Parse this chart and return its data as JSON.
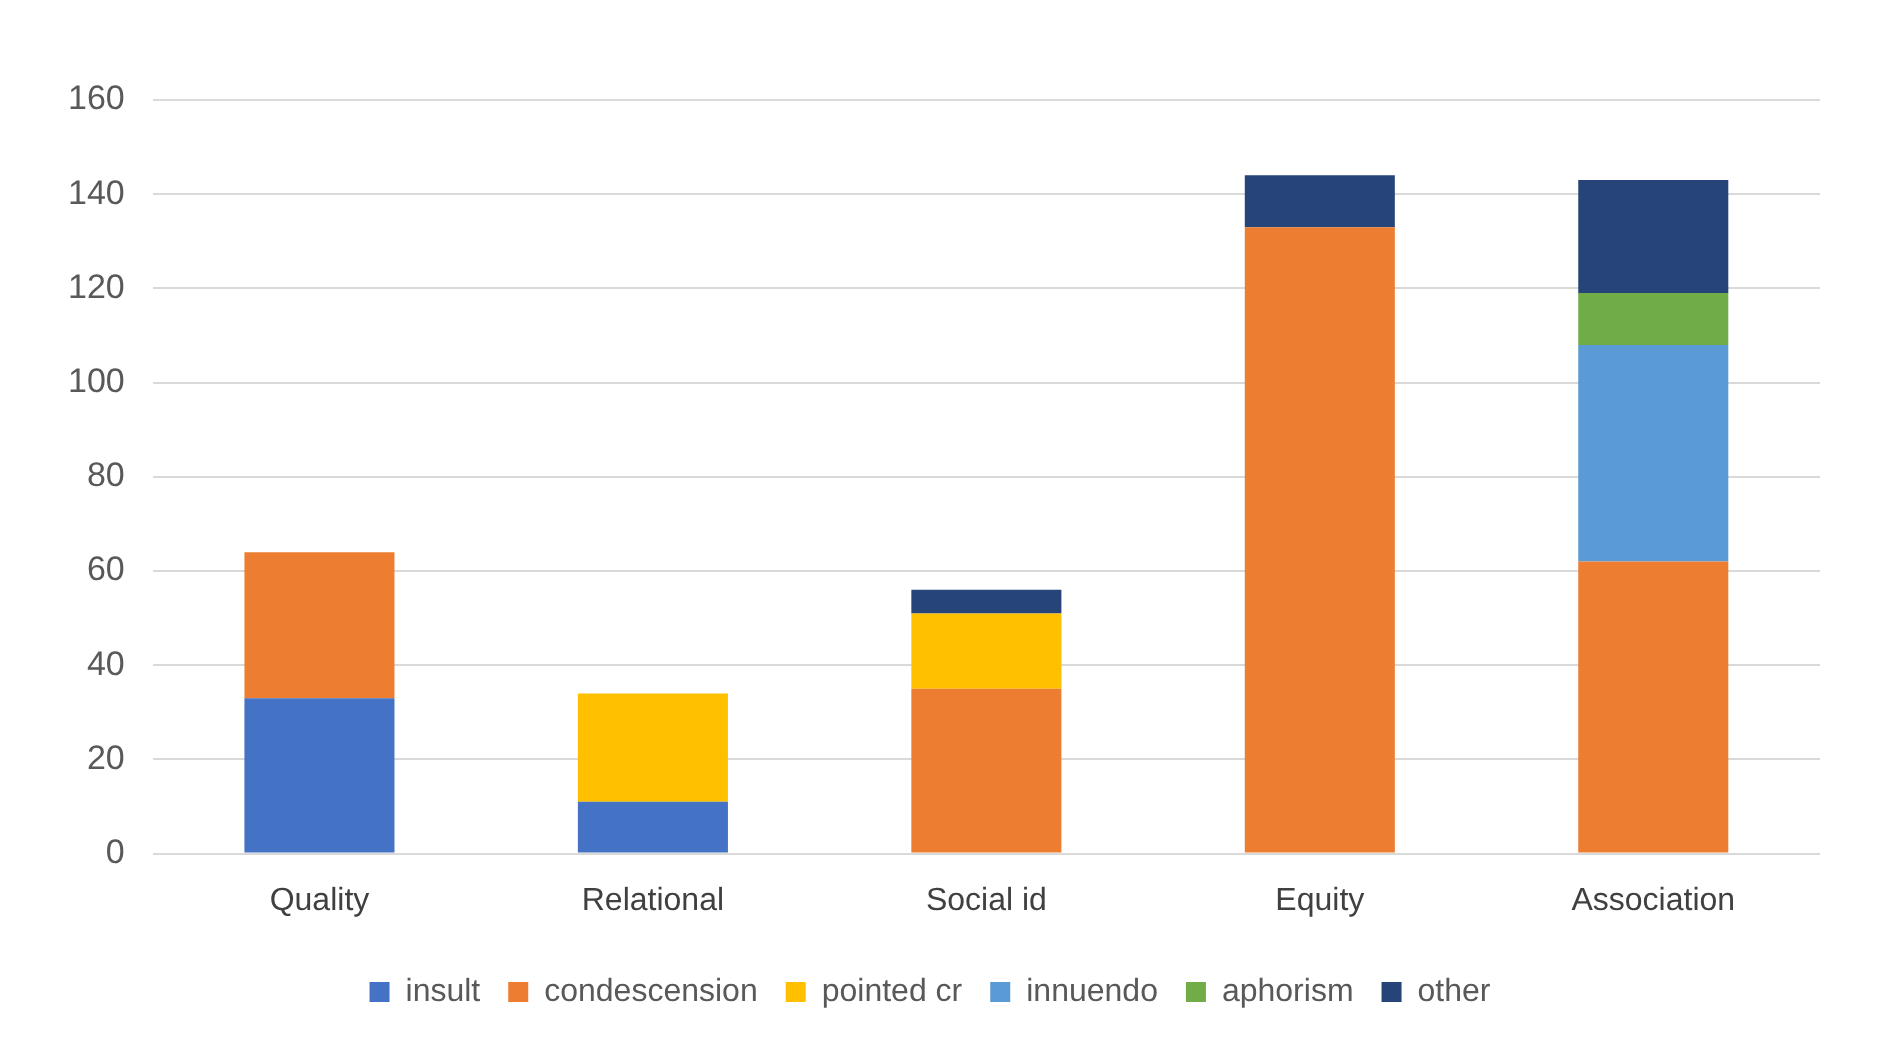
{
  "chart_data": {
    "type": "bar",
    "stacked": true,
    "categories": [
      "Quality",
      "Relational",
      "Social id",
      "Equity",
      "Association"
    ],
    "series": [
      {
        "name": "insult",
        "color": "#4472c4",
        "values": [
          33,
          11,
          0,
          0,
          0
        ]
      },
      {
        "name": "condescension",
        "color": "#ed7d31",
        "values": [
          31,
          0,
          35,
          133,
          62
        ]
      },
      {
        "name": "pointed cr",
        "color": "#ffc000",
        "values": [
          0,
          23,
          16,
          0,
          0
        ]
      },
      {
        "name": "innuendo",
        "color": "#5b9bd5",
        "values": [
          0,
          0,
          0,
          0,
          46
        ]
      },
      {
        "name": "aphorism",
        "color": "#70ad47",
        "values": [
          0,
          0,
          0,
          0,
          11
        ]
      },
      {
        "name": "other",
        "color": "#264478",
        "values": [
          0,
          0,
          5,
          11,
          24
        ]
      }
    ],
    "ylim": [
      0,
      160
    ],
    "yticks": [
      0,
      20,
      40,
      60,
      80,
      100,
      120,
      140,
      160
    ],
    "grid": "y",
    "legend": "bottom"
  }
}
